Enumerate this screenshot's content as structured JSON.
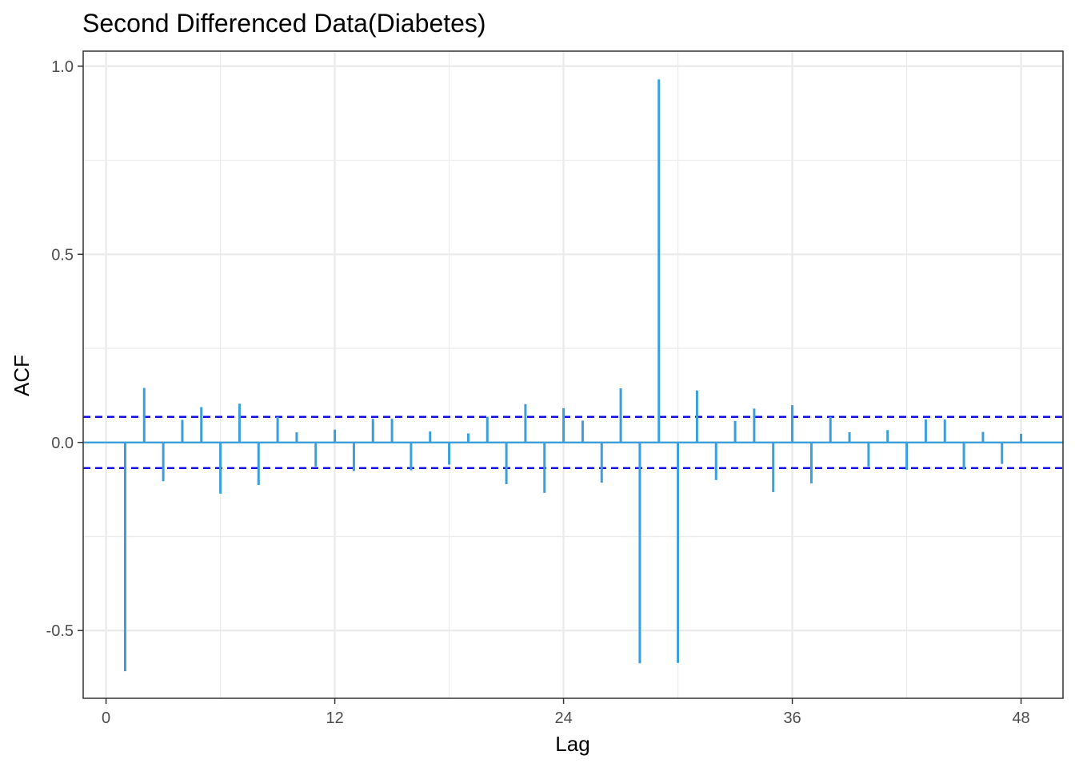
{
  "chart_data": {
    "type": "bar",
    "subtype": "acf-lollipop",
    "title": "Second Differenced Data(Diabetes)",
    "xlabel": "Lag",
    "ylabel": "ACF",
    "xlim": [
      -1.2,
      50.2
    ],
    "ylim": [
      -0.68,
      1.04
    ],
    "x_ticks": [
      0,
      12,
      24,
      36,
      48
    ],
    "x_tick_labels": [
      "0",
      "12",
      "24",
      "36",
      "48"
    ],
    "y_ticks": [
      -0.5,
      0,
      0.5,
      1.0
    ],
    "y_tick_labels": [
      "-0.5",
      "0.0",
      "0.5",
      "1.0"
    ],
    "grid": true,
    "legend": "none",
    "confidence_bound": 0.068,
    "colors": {
      "bars": "#3b9fd9",
      "bound_lines": "#1010e0",
      "grid": "#ebebeb",
      "panel_border": "#333333"
    },
    "lags": [
      1,
      2,
      3,
      4,
      5,
      6,
      7,
      8,
      9,
      10,
      11,
      12,
      13,
      14,
      15,
      16,
      17,
      18,
      19,
      20,
      21,
      22,
      23,
      24,
      25,
      26,
      27,
      28,
      29,
      30,
      31,
      32,
      33,
      34,
      35,
      36,
      37,
      38,
      39,
      40,
      41,
      42,
      43,
      44,
      45,
      46,
      47,
      48
    ],
    "values": [
      -0.608,
      0.145,
      -0.103,
      0.06,
      0.094,
      -0.136,
      0.103,
      -0.113,
      0.068,
      0.027,
      -0.064,
      0.034,
      -0.076,
      0.063,
      0.063,
      -0.074,
      0.029,
      -0.059,
      0.024,
      0.068,
      -0.111,
      0.102,
      -0.134,
      0.091,
      0.058,
      -0.107,
      0.144,
      -0.587,
      0.965,
      -0.586,
      0.138,
      -0.1,
      0.057,
      0.09,
      -0.132,
      0.099,
      -0.109,
      0.068,
      0.027,
      -0.064,
      0.033,
      -0.073,
      0.061,
      0.061,
      -0.072,
      0.028,
      -0.057,
      0.023
    ]
  }
}
